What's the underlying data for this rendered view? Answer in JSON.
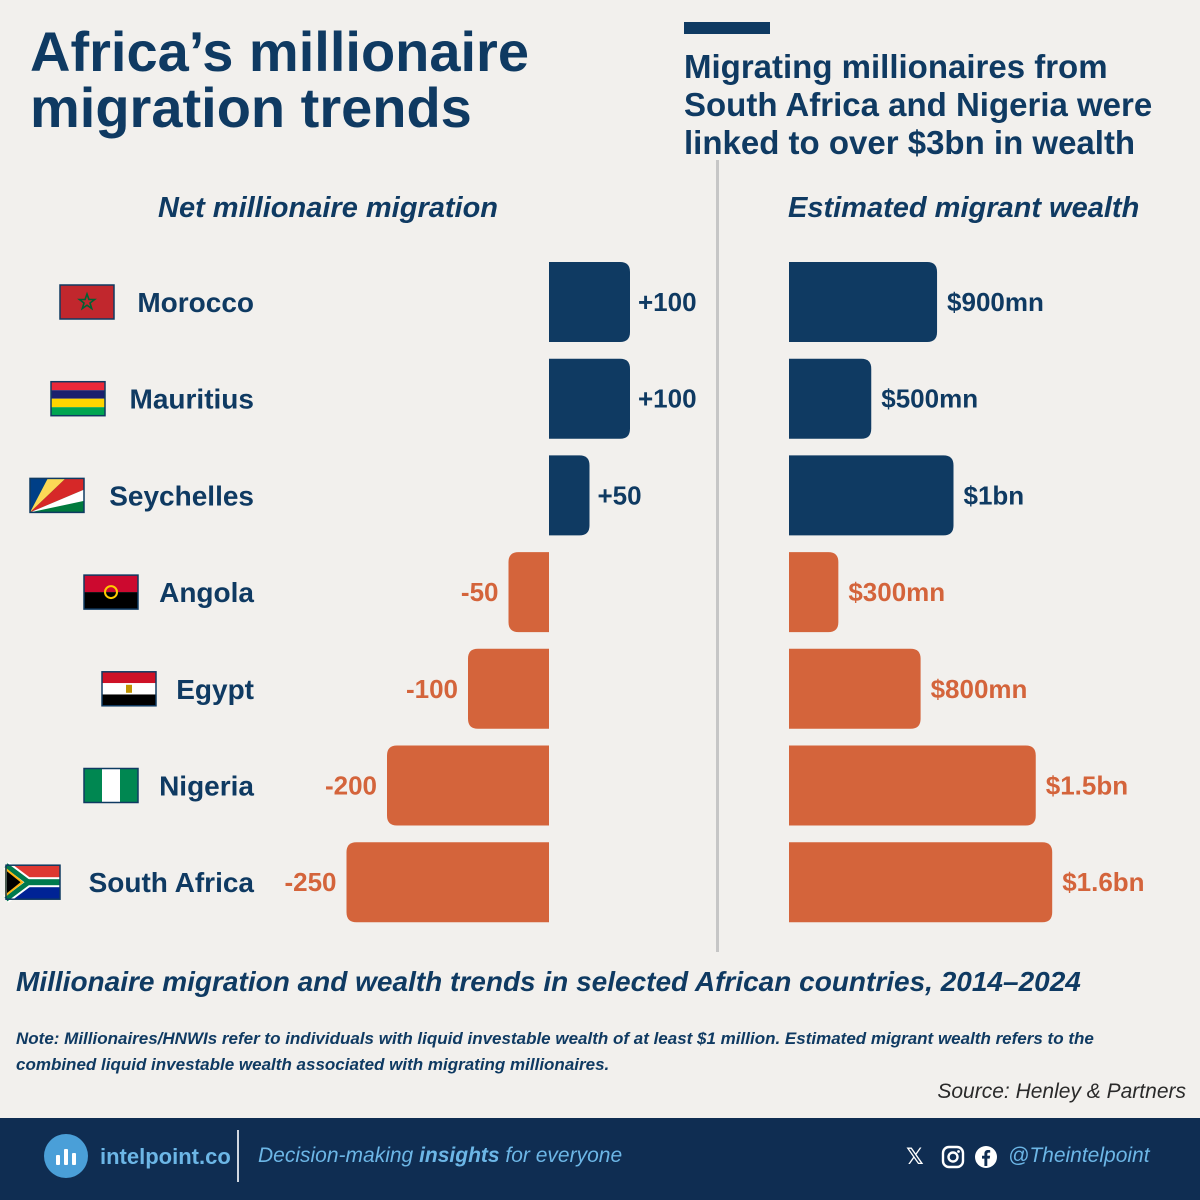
{
  "title": "Africa’s millionaire migration trends",
  "subtitle": "Migrating millionaires from South Africa and Nigeria were linked to over $3bn in wealth",
  "colors": {
    "positive": "#0f3a62",
    "negative": "#d4643b",
    "text": "#0f3a62",
    "footer": "#0f2d52",
    "accent": "#6cb6e6"
  },
  "chart_data": [
    {
      "type": "bar",
      "orientation": "horizontal",
      "title": "Net millionaire migration",
      "categories": [
        "Morocco",
        "Mauritius",
        "Seychelles",
        "Angola",
        "Egypt",
        "Nigeria",
        "South Africa"
      ],
      "values": [
        100,
        100,
        50,
        -50,
        -100,
        -200,
        -250
      ],
      "data_labels": [
        "+100",
        "+100",
        "+50",
        "-50",
        "-100",
        "-200",
        "-250"
      ]
    },
    {
      "type": "bar",
      "orientation": "horizontal",
      "title": "Estimated migrant wealth",
      "categories": [
        "Morocco",
        "Mauritius",
        "Seychelles",
        "Angola",
        "Egypt",
        "Nigeria",
        "South Africa"
      ],
      "values": [
        900,
        500,
        1000,
        300,
        800,
        1500,
        1600
      ],
      "unit": "USD million",
      "data_labels": [
        "$900mn",
        "$500mn",
        "$1bn",
        "$300mn",
        "$800mn",
        "$1.5bn",
        "$1.6bn"
      ]
    }
  ],
  "flags": [
    {
      "country": "Morocco",
      "icon": "morocco-flag-icon"
    },
    {
      "country": "Mauritius",
      "icon": "mauritius-flag-icon"
    },
    {
      "country": "Seychelles",
      "icon": "seychelles-flag-icon"
    },
    {
      "country": "Angola",
      "icon": "angola-flag-icon"
    },
    {
      "country": "Egypt",
      "icon": "egypt-flag-icon"
    },
    {
      "country": "Nigeria",
      "icon": "nigeria-flag-icon"
    },
    {
      "country": "South Africa",
      "icon": "south-africa-flag-icon"
    }
  ],
  "caption": "Millionaire migration and wealth trends in selected African countries, 2014–2024",
  "note": "Note: Millionaires/HNWIs refer to individuals with liquid investable wealth of at least $1 million. Estimated migrant wealth refers to the combined liquid investable wealth associated with migrating millionaires.",
  "source": "Source: Henley & Partners",
  "footer": {
    "brand": "intelpoint.co",
    "tagline_pre": "Decision-making ",
    "tagline_bold": "insights",
    "tagline_post": " for everyone",
    "x_icon": "x-icon",
    "x_glyph": "𝕏",
    "instagram_icon": "instagram-icon",
    "facebook_icon": "facebook-icon",
    "handle": "@Theintelpoint"
  }
}
